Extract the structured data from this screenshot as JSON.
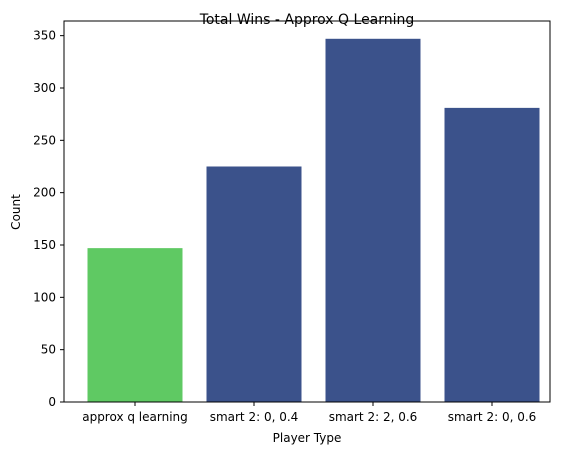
{
  "chart_data": {
    "type": "bar",
    "title": "Total Wins - Approx Q Learning",
    "xlabel": "Player Type",
    "ylabel": "Count",
    "categories": [
      "approx q learning",
      "smart 2: 0, 0.4",
      "smart 2: 2, 0.6",
      "smart 2: 0, 0.6"
    ],
    "values": [
      147,
      225,
      347,
      281
    ],
    "bar_colors": [
      "#5fc963",
      "#3b528b",
      "#3b528b",
      "#3b528b"
    ],
    "yticks": [
      0,
      50,
      100,
      150,
      200,
      250,
      300,
      350
    ],
    "ylim": [
      0,
      364
    ],
    "grid": false,
    "legend": "none"
  }
}
